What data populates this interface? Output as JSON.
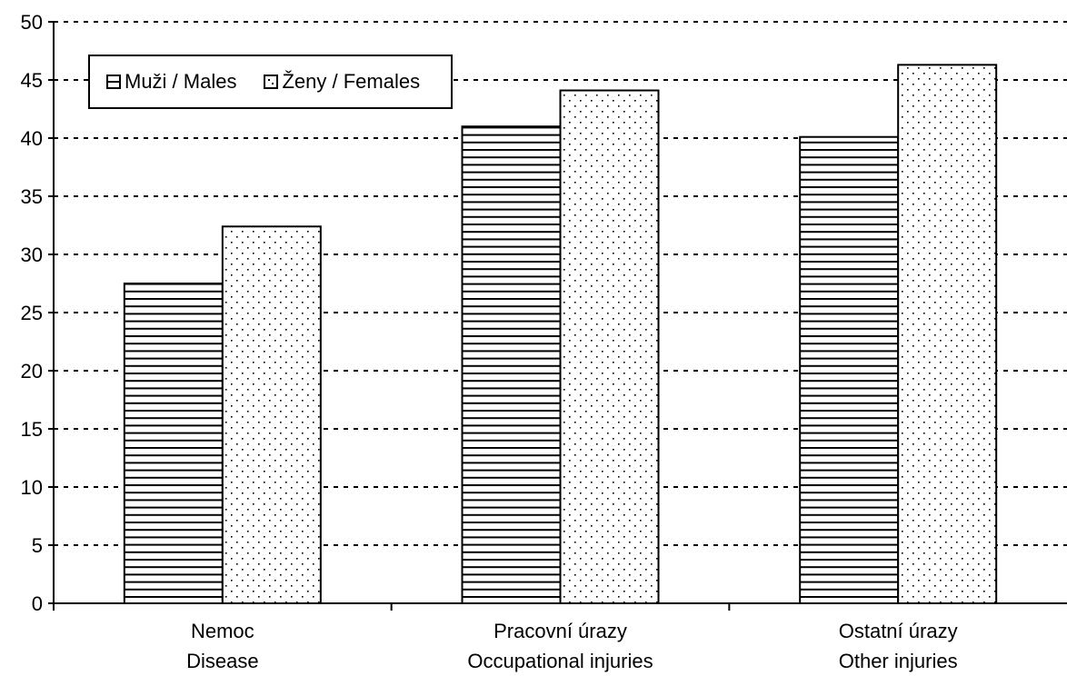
{
  "chart_data": {
    "type": "bar",
    "categories": [
      {
        "line1": "Nemoc",
        "line2": "Disease"
      },
      {
        "line1": "Pracovní úrazy",
        "line2": "Occupational injuries"
      },
      {
        "line1": "Ostatní úrazy",
        "line2": "Other injuries"
      }
    ],
    "series": [
      {
        "name": "Muži / Males",
        "pattern": "horizontal-lines",
        "values": [
          27.5,
          41.0,
          40.1
        ]
      },
      {
        "name": "Ženy / Females",
        "pattern": "dots",
        "values": [
          32.4,
          44.1,
          46.3
        ]
      }
    ],
    "ylim": [
      0,
      50
    ],
    "yticks": [
      "0",
      "5",
      "10",
      "15",
      "20",
      "25",
      "30",
      "35",
      "40",
      "45",
      "50"
    ],
    "grid": true,
    "legend_position": "top-left",
    "colors": {
      "bar_fill": "#ffffff",
      "stroke": "#000000"
    }
  }
}
